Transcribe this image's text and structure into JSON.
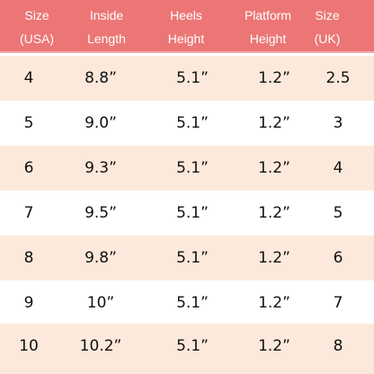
{
  "headers": [
    {
      "line1": "Size",
      "line2": "(USA)"
    },
    {
      "line1": "Inside",
      "line2": "Length"
    },
    {
      "line1": "Heels",
      "line2": "Height"
    },
    {
      "line1": "Platform",
      "line2": "Height"
    },
    {
      "line1": "Size",
      "line2": "(UK)"
    }
  ],
  "rows": [
    [
      "4",
      "8.8”",
      "5.1”",
      "1.2”",
      "2.5"
    ],
    [
      "5",
      "9.0”",
      "5.1”",
      "1.2”",
      "3"
    ],
    [
      "6",
      "9.3”",
      "5.1”",
      "1.2”",
      "4"
    ],
    [
      "7",
      "9.5”",
      "5.1”",
      "1.2”",
      "5"
    ],
    [
      "8",
      "9.8”",
      "5.1”",
      "1.2”",
      "6"
    ],
    [
      "9",
      "10”",
      "5.1”",
      "1.2”",
      "7"
    ],
    [
      "10",
      "10.2”",
      "5.1”",
      "1.2”",
      "8"
    ]
  ],
  "colors": {
    "header_bg": "#ec7676",
    "shaded_row_bg": "#fde9db",
    "plain_row_bg": "#ffffff"
  }
}
